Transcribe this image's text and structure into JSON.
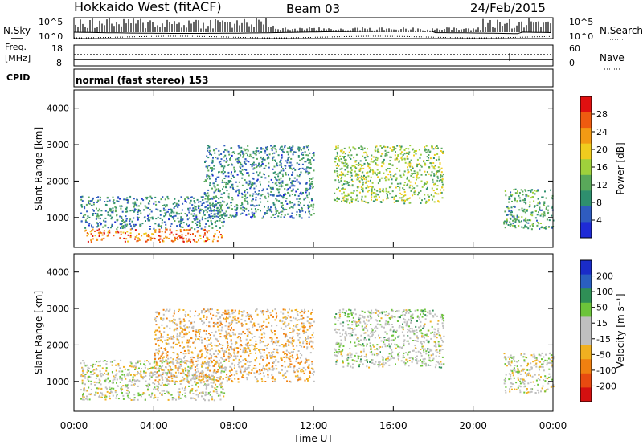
{
  "header": {
    "station": "Hokkaido West (fitACF)",
    "beam": "Beam 03",
    "date": "24/Feb/2015"
  },
  "noise_panel": {
    "left_label": "N.Sky",
    "left_top_tick": "10^5",
    "left_bottom_tick": "10^0",
    "right_label": "N.Search",
    "right_top_tick": "10^5",
    "right_bottom_tick": "10^0"
  },
  "freq_panel": {
    "left_label_1": "Freq.",
    "left_label_2": "[MHz]",
    "left_top_tick": "18",
    "left_bottom_tick": "8",
    "right_label": "Nave",
    "right_top_tick": "60",
    "right_bottom_tick": "0"
  },
  "cpid": {
    "label": "CPID",
    "text": "normal (fast stereo) 153"
  },
  "colors": {
    "power_scale": [
      "#1f2bd6",
      "#2f5cbf",
      "#2e8f6e",
      "#59a85a",
      "#9fd13c",
      "#f0cc1e",
      "#f39a14",
      "#ee5b10",
      "#e01010"
    ],
    "velocity_scale": [
      "#1a2cc9",
      "#2a5fc0",
      "#2f8f56",
      "#6cc43a",
      "#bfbfbf",
      "#bfbfbf",
      "#f0b020",
      "#f08010",
      "#e84a10",
      "#d41010"
    ]
  },
  "chart_data": [
    {
      "type": "heatmap",
      "title": "",
      "xlabel": "",
      "ylabel": "Slant Range [km]",
      "xlim": [
        "00:00",
        "24:00"
      ],
      "ylim": [
        180,
        4500
      ],
      "yticks": [
        "1000",
        "2000",
        "3000",
        "4000"
      ],
      "colorbar": {
        "label": "Power [dB]",
        "ticks": [
          "4",
          "8",
          "12",
          "16",
          "20",
          "24",
          "28"
        ],
        "range": [
          0,
          30
        ]
      },
      "echo_regions": [
        {
          "from_hour": 0.3,
          "to_hour": 7.5,
          "range_km": [
            700,
            1600
          ],
          "power_db": 8
        },
        {
          "from_hour": 0.5,
          "to_hour": 7.4,
          "range_km": [
            350,
            700
          ],
          "power_db": 24
        },
        {
          "from_hour": 6.5,
          "to_hour": 12.0,
          "range_km": [
            1000,
            3000
          ],
          "power_db": 8
        },
        {
          "from_hour": 13.0,
          "to_hour": 18.5,
          "range_km": [
            1400,
            3000
          ],
          "power_db": 14
        },
        {
          "from_hour": 21.5,
          "to_hour": 24.0,
          "range_km": [
            700,
            1800
          ],
          "power_db": 10
        }
      ]
    },
    {
      "type": "heatmap",
      "title": "",
      "xlabel": "Time UT",
      "ylabel": "Slant Range [km]",
      "xlim": [
        "00:00",
        "24:00"
      ],
      "ylim": [
        180,
        4500
      ],
      "xticks": [
        "00:00",
        "04:00",
        "08:00",
        "12:00",
        "16:00",
        "20:00",
        "00:00"
      ],
      "yticks": [
        "1000",
        "2000",
        "3000",
        "4000"
      ],
      "colorbar": {
        "label": "Velocity [m s⁻¹]",
        "ticks": [
          "200",
          "100",
          "50",
          "15",
          "-15",
          "-50",
          "-100",
          "-200"
        ],
        "range": [
          -250,
          250
        ]
      },
      "echo_regions": [
        {
          "from_hour": 0.3,
          "to_hour": 7.5,
          "range_km": [
            500,
            1600
          ],
          "velocity_ms": 0
        },
        {
          "from_hour": 4.0,
          "to_hour": 12.0,
          "range_km": [
            1000,
            3000
          ],
          "velocity_ms": -60
        },
        {
          "from_hour": 13.0,
          "to_hour": 18.5,
          "range_km": [
            1400,
            3000
          ],
          "velocity_ms": 20
        },
        {
          "from_hour": 21.5,
          "to_hour": 24.0,
          "range_km": [
            700,
            1800
          ],
          "velocity_ms": 0
        }
      ]
    }
  ]
}
